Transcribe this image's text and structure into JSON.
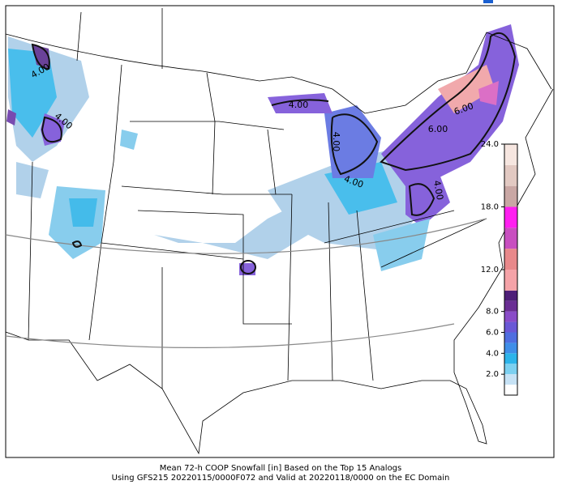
{
  "map": {
    "caption": [
      "Mean 72-h COOP Snowfall [in] Based on the Top 15 Analogs",
      "Using GFS215 20220115/0000F072 and Valid at 20220118/0000 on the EC Domain"
    ],
    "contour_labels": [
      "4.00",
      "4.00",
      "4.00",
      "4.00",
      "4.00",
      "4.00",
      "6.00",
      "6.00"
    ],
    "colorbar": {
      "lim": [
        0,
        24
      ],
      "ticks": [
        {
          "value": 2,
          "label": "2.0"
        },
        {
          "value": 4,
          "label": "4.0"
        },
        {
          "value": 6,
          "label": "6.0"
        },
        {
          "value": 8,
          "label": "8.0"
        },
        {
          "value": 12,
          "label": "12.0"
        },
        {
          "value": 18,
          "label": "18.0"
        },
        {
          "value": 24,
          "label": "24.0"
        }
      ],
      "bands": [
        {
          "from": 0,
          "to": 1,
          "color": "#ffffff"
        },
        {
          "from": 1,
          "to": 2,
          "color": "#c6e2f5"
        },
        {
          "from": 2,
          "to": 3,
          "color": "#7cd0f0"
        },
        {
          "from": 3,
          "to": 4,
          "color": "#2db4ea"
        },
        {
          "from": 4,
          "to": 5,
          "color": "#3f8ee8"
        },
        {
          "from": 5,
          "to": 6,
          "color": "#4f6ee0"
        },
        {
          "from": 6,
          "to": 7,
          "color": "#6a58d6"
        },
        {
          "from": 7,
          "to": 8,
          "color": "#8a4cc8"
        },
        {
          "from": 8,
          "to": 9,
          "color": "#6a2e94"
        },
        {
          "from": 9,
          "to": 10,
          "color": "#4e1f78"
        },
        {
          "from": 10,
          "to": 12,
          "color": "#f5a3a8"
        },
        {
          "from": 12,
          "to": 14,
          "color": "#e8888a"
        },
        {
          "from": 14,
          "to": 16,
          "color": "#c84fc0"
        },
        {
          "from": 16,
          "to": 18,
          "color": "#ff1ff0"
        },
        {
          "from": 18,
          "to": 20,
          "color": "#c9a7a4"
        },
        {
          "from": 20,
          "to": 22,
          "color": "#e2c9c2"
        },
        {
          "from": 22,
          "to": 24,
          "color": "#f6e6e0"
        }
      ]
    }
  }
}
